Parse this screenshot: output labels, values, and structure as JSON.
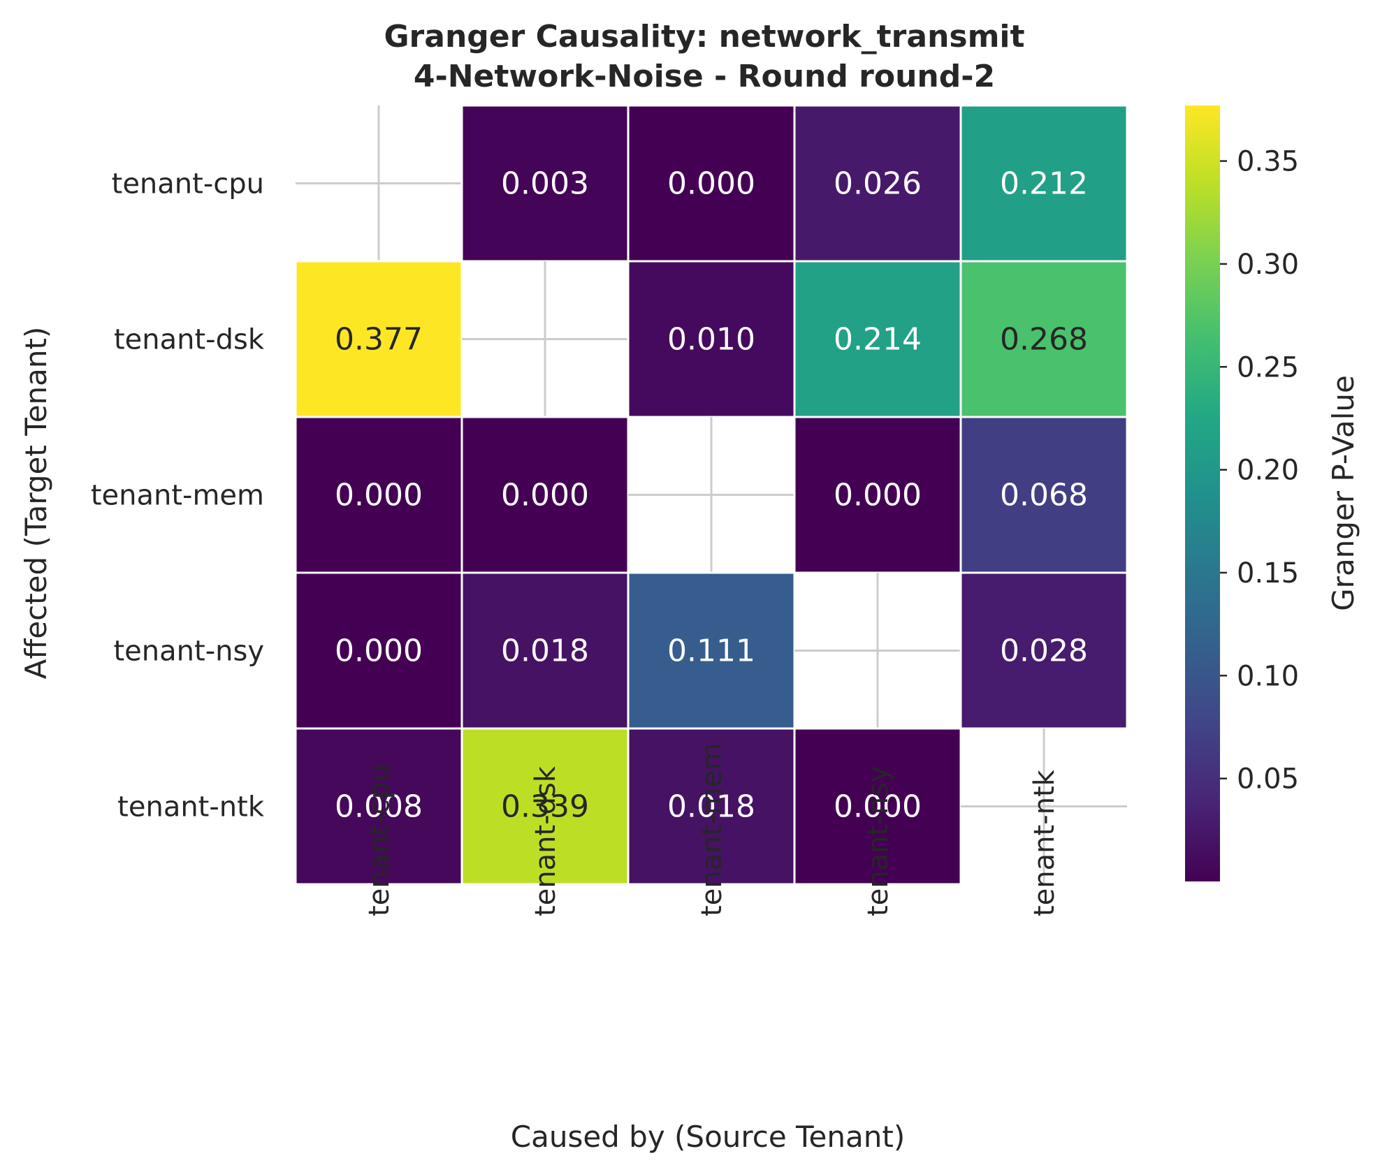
{
  "chart_data": {
    "type": "heatmap",
    "title_line1": "Granger Causality: network_transmit",
    "title_line2": "4-Network-Noise - Round round-2",
    "xlabel": "Caused by (Source Tenant)",
    "ylabel": "Affected (Target Tenant)",
    "x_categories": [
      "tenant-cpu",
      "tenant-dsk",
      "tenant-mem",
      "tenant-nsy",
      "tenant-ntk"
    ],
    "y_categories": [
      "tenant-cpu",
      "tenant-dsk",
      "tenant-mem",
      "tenant-nsy",
      "tenant-ntk"
    ],
    "values": [
      [
        null,
        0.003,
        0.0,
        0.026,
        0.212
      ],
      [
        0.377,
        null,
        0.01,
        0.214,
        0.268
      ],
      [
        0.0,
        0.0,
        null,
        0.0,
        0.068
      ],
      [
        0.0,
        0.018,
        0.111,
        null,
        0.028
      ],
      [
        0.008,
        0.339,
        0.018,
        0.0,
        null
      ]
    ],
    "value_labels": [
      [
        "",
        "0.003",
        "0.000",
        "0.026",
        "0.212"
      ],
      [
        "0.377",
        "",
        "0.010",
        "0.214",
        "0.268"
      ],
      [
        "0.000",
        "0.000",
        "",
        "0.000",
        "0.068"
      ],
      [
        "0.000",
        "0.018",
        "0.111",
        "",
        "0.028"
      ],
      [
        "0.008",
        "0.339",
        "0.018",
        "0.000",
        ""
      ]
    ],
    "colormap": "viridis",
    "vmin": 0.0,
    "vmax": 0.377,
    "colorbar_label": "Granger P-Value",
    "colorbar_ticks": [
      0.05,
      0.1,
      0.15,
      0.2,
      0.25,
      0.3,
      0.35
    ],
    "colorbar_tick_labels": [
      "0.05",
      "0.10",
      "0.15",
      "0.20",
      "0.25",
      "0.30",
      "0.35"
    ],
    "grid": true
  }
}
